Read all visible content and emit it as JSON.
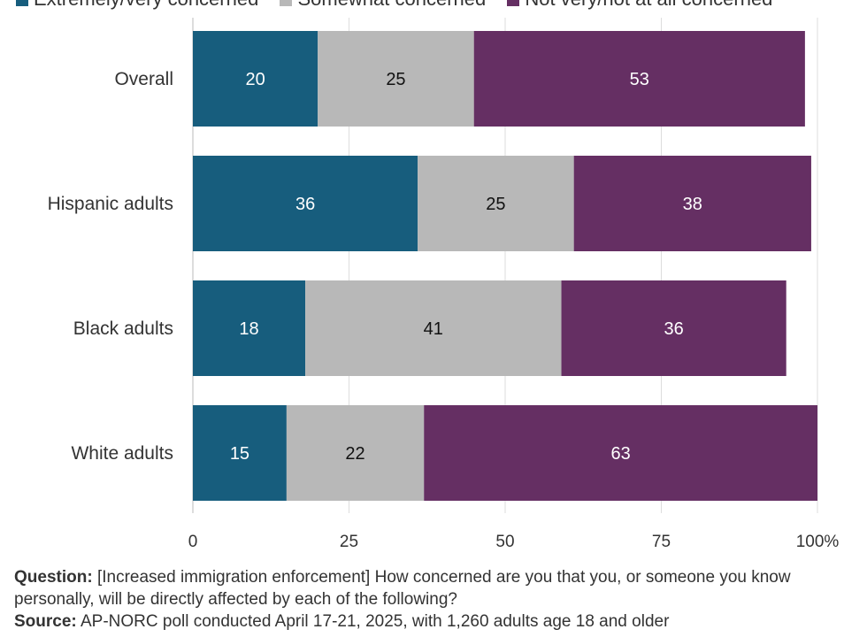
{
  "legend": [
    {
      "label": "Extremely/very concerned",
      "color": "#175d7d"
    },
    {
      "label": "Somewhat concerned",
      "color": "#b8b8b8"
    },
    {
      "label": "Not very/not at all concerned",
      "color": "#652f63"
    }
  ],
  "chart_data": {
    "type": "bar",
    "orientation": "horizontal",
    "stacked": true,
    "categories": [
      "Overall",
      "Hispanic adults",
      "Black adults",
      "White adults"
    ],
    "series": [
      {
        "name": "Extremely/very concerned",
        "color": "#175d7d",
        "label_color": "#ffffff",
        "values": [
          20,
          36,
          18,
          15
        ]
      },
      {
        "name": "Somewhat concerned",
        "color": "#b8b8b8",
        "label_color": "#111111",
        "values": [
          25,
          25,
          41,
          22
        ]
      },
      {
        "name": "Not very/not at all concerned",
        "color": "#652f63",
        "label_color": "#ffffff",
        "values": [
          53,
          38,
          36,
          63
        ]
      }
    ],
    "xlim": [
      0,
      100
    ],
    "x_ticks": [
      "0",
      "25",
      "50",
      "75",
      "100%"
    ],
    "x_tick_values": [
      0,
      25,
      50,
      75,
      100
    ],
    "grid": true,
    "legend_position": "top"
  },
  "footnote": {
    "question_label": "Question:",
    "question_text": "[Increased immigration enforcement] How concerned are you that you, or someone you know personally, will be directly affected by each of the following?",
    "source_label": "Source:",
    "source_text": "AP-NORC poll conducted April 17-21, 2025, with 1,260 adults age 18 and older"
  }
}
